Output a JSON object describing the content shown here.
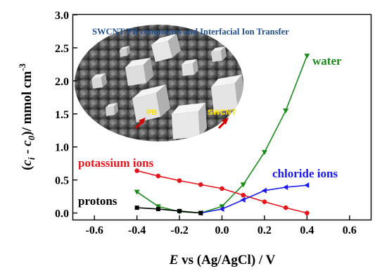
{
  "chart_data": {
    "type": "line",
    "title": "SWCNT/PB composites and Interfacial Ion Transfer",
    "xlabel": "E vs (Ag/AgCl) / V",
    "xlabel_italic": "E",
    "xlabel_rest": " vs (Ag/AgCl) / V",
    "ylabel": "(ci - c0)/ mmol cm-3",
    "ylabel_parts": {
      "open": "(",
      "c1": "c",
      "sub1": "i",
      "minus": " - ",
      "c2": "c",
      "sub2": "0",
      "close": ")/ mmol cm",
      "sup": "-3"
    },
    "xlim": [
      -0.7,
      0.7
    ],
    "ylim": [
      -0.1,
      3.0
    ],
    "x_ticks": [
      -0.6,
      -0.4,
      -0.2,
      0.0,
      0.2,
      0.4,
      0.6
    ],
    "x_tick_labels": [
      "-0.6",
      "-0.4",
      "-0.2",
      "0.0",
      "0.2",
      "0.4",
      "0.6"
    ],
    "y_ticks": [
      0.0,
      0.5,
      1.0,
      1.5,
      2.0,
      2.5,
      3.0
    ],
    "y_tick_labels": [
      "0.0",
      "0.5",
      "1.0",
      "1.5",
      "2.0",
      "2.5",
      "3.0"
    ],
    "grid": false,
    "series": [
      {
        "name": "water",
        "color": "#1a8c1a",
        "marker": "triangle-down",
        "x": [
          -0.4,
          -0.3,
          -0.2,
          -0.1,
          0.0,
          0.1,
          0.2,
          0.3,
          0.4
        ],
        "y": [
          0.32,
          0.1,
          0.02,
          0.0,
          0.1,
          0.43,
          0.92,
          1.55,
          2.38
        ]
      },
      {
        "name": "potassium ions",
        "color": "#e8141b",
        "marker": "circle",
        "x": [
          -0.4,
          -0.3,
          -0.2,
          -0.1,
          0.0,
          0.1,
          0.2,
          0.3,
          0.4
        ],
        "y": [
          0.64,
          0.56,
          0.49,
          0.43,
          0.37,
          0.27,
          0.17,
          0.08,
          0.0
        ]
      },
      {
        "name": "chloride ions",
        "color": "#1a1aee",
        "marker": "triangle-left",
        "x": [
          -0.1,
          0.0,
          0.1,
          0.2,
          0.3,
          0.4
        ],
        "y": [
          0.0,
          0.06,
          0.2,
          0.34,
          0.39,
          0.42
        ]
      },
      {
        "name": "protons",
        "color": "#000000",
        "marker": "square",
        "x": [
          -0.4,
          -0.3,
          -0.2,
          -0.1
        ],
        "y": [
          0.08,
          0.06,
          0.03,
          0.0
        ]
      }
    ],
    "inset": {
      "description_tags": [
        "PB",
        "SWCNT"
      ]
    }
  },
  "colors": {
    "inset_title": "#1f4e8c",
    "inset_tag": "#ffe100",
    "arrow": "#d40000"
  }
}
